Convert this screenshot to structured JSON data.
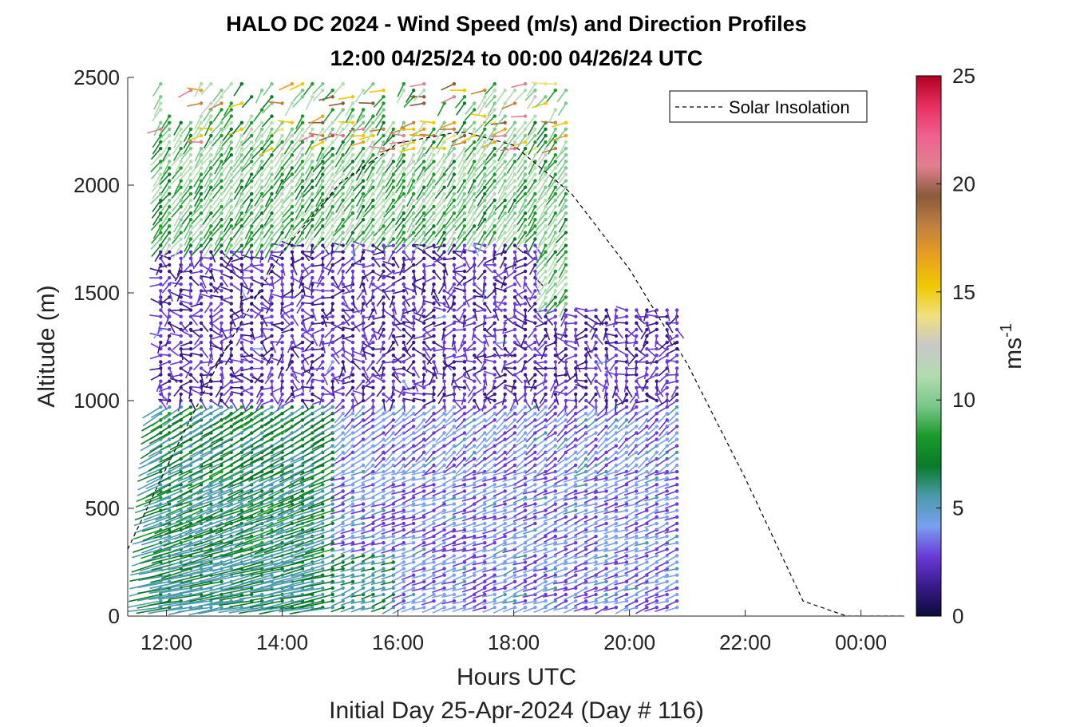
{
  "chart_data": {
    "type": "wind-barb-profile",
    "title_line1": "HALO DC 2024 - Wind Speed (m/s) and Direction Profiles",
    "title_line2": "12:00 04/25/24 to 00:00 04/26/24  UTC",
    "xlabel": "Hours UTC",
    "xlabel2": "Initial Day 25-Apr-2024 (Day # 116)",
    "ylabel": "Altitude (m)",
    "colorbar_label": "ms",
    "colorbar_label_exp": "-1",
    "x_range_hours": [
      11.33,
      24.75
    ],
    "y_range_m": [
      0,
      2500
    ],
    "x_ticks": [
      12,
      14,
      16,
      18,
      20,
      22,
      24
    ],
    "x_tick_labels": [
      "12:00",
      "14:00",
      "16:00",
      "18:00",
      "20:00",
      "22:00",
      "00:00"
    ],
    "y_ticks": [
      0,
      500,
      1000,
      1500,
      2000,
      2500
    ],
    "y_tick_labels": [
      "0",
      "500",
      "1000",
      "1500",
      "2000",
      "2500"
    ],
    "colorbar_range": [
      0,
      25
    ],
    "colorbar_ticks": [
      0,
      5,
      10,
      15,
      20,
      25
    ],
    "colorbar_tick_labels": [
      "0",
      "5",
      "10",
      "15",
      "20",
      "25"
    ],
    "colorbar_stops": [
      "#0b0b3a",
      "#3a1a8a",
      "#6a3ad8",
      "#7aa0f0",
      "#4a9aaa",
      "#0a7a2a",
      "#1a9a2a",
      "#7ac88a",
      "#b0dcae",
      "#c8c8c8",
      "#f0e080",
      "#f0c800",
      "#e8a020",
      "#c08040",
      "#8a5a3a",
      "#e08090",
      "#f06090",
      "#e83060",
      "#b00020"
    ],
    "legend": {
      "entries": [
        "Solar Insolation"
      ],
      "placement": "top-right"
    },
    "solar_insolation": {
      "hours": [
        11.33,
        12.0,
        13.0,
        14.0,
        15.0,
        16.0,
        17.0,
        17.17,
        18.0,
        19.0,
        20.0,
        21.0,
        22.0,
        23.0,
        23.75,
        24.75
      ],
      "altitude_scaled": [
        310,
        690,
        1230,
        1690,
        2010,
        2195,
        2245,
        2245,
        2185,
        1960,
        1610,
        1170,
        640,
        70,
        0,
        0
      ]
    },
    "profile_times_hours": [
      11.9,
      12.05,
      12.25,
      12.42,
      12.6,
      12.77,
      12.95,
      13.12,
      13.3,
      13.47,
      13.65,
      13.82,
      14.0,
      14.17,
      14.35,
      14.52,
      14.7,
      14.87,
      15.05,
      15.22,
      15.4,
      15.57,
      15.75,
      15.92,
      16.1,
      16.27,
      16.45,
      16.62,
      16.8,
      16.97,
      17.15,
      17.32,
      17.5,
      17.67,
      17.85,
      18.02,
      18.2,
      18.37,
      18.55,
      18.72,
      18.9,
      19.07,
      19.25,
      19.42,
      19.6,
      19.77,
      19.95,
      20.12,
      20.3,
      20.47,
      20.65,
      20.82
    ],
    "profiles": [
      {
        "band": "0-1000 m",
        "speed_ms": 7,
        "direction": "from west, tilted"
      },
      {
        "band": "0-1000 m after 15:00",
        "speed_ms": 3,
        "direction": "from west/northwest"
      },
      {
        "band": "1000-1700 m",
        "speed_ms": 2,
        "direction": "variable"
      },
      {
        "band": "1700-2500 m",
        "speed_ms": 9,
        "direction": "from northwest"
      },
      {
        "band": "sparse upper returns",
        "speed_ms": 17,
        "direction": "from west/southwest"
      }
    ]
  }
}
